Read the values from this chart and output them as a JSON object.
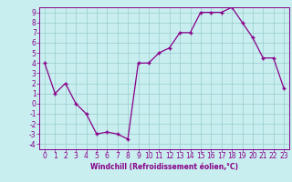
{
  "x": [
    0,
    1,
    2,
    3,
    4,
    5,
    6,
    7,
    8,
    9,
    10,
    11,
    12,
    13,
    14,
    15,
    16,
    17,
    18,
    19,
    20,
    21,
    22,
    23
  ],
  "y": [
    4,
    1,
    2,
    0,
    -1,
    -3,
    -2.8,
    -3,
    -3.5,
    4,
    4,
    5,
    5.5,
    7,
    7,
    9,
    9,
    9,
    9.5,
    8,
    6.5,
    4.5,
    4.5,
    1.5
  ],
  "line_color": "#880088",
  "marker_color": "#880088",
  "bg_color": "#c8eef0",
  "grid_color": "#99cccc",
  "xlabel": "Windchill (Refroidissement éolien,°C)",
  "xlabel_color": "#880088",
  "ylim": [
    -4.5,
    9.5
  ],
  "xlim": [
    -0.5,
    23.5
  ],
  "yticks": [
    -4,
    -3,
    -2,
    -1,
    0,
    1,
    2,
    3,
    4,
    5,
    6,
    7,
    8,
    9
  ],
  "xticks": [
    0,
    1,
    2,
    3,
    4,
    5,
    6,
    7,
    8,
    9,
    10,
    11,
    12,
    13,
    14,
    15,
    16,
    17,
    18,
    19,
    20,
    21,
    22,
    23
  ],
  "tick_fontsize": 5.5,
  "xlabel_fontsize": 5.5
}
